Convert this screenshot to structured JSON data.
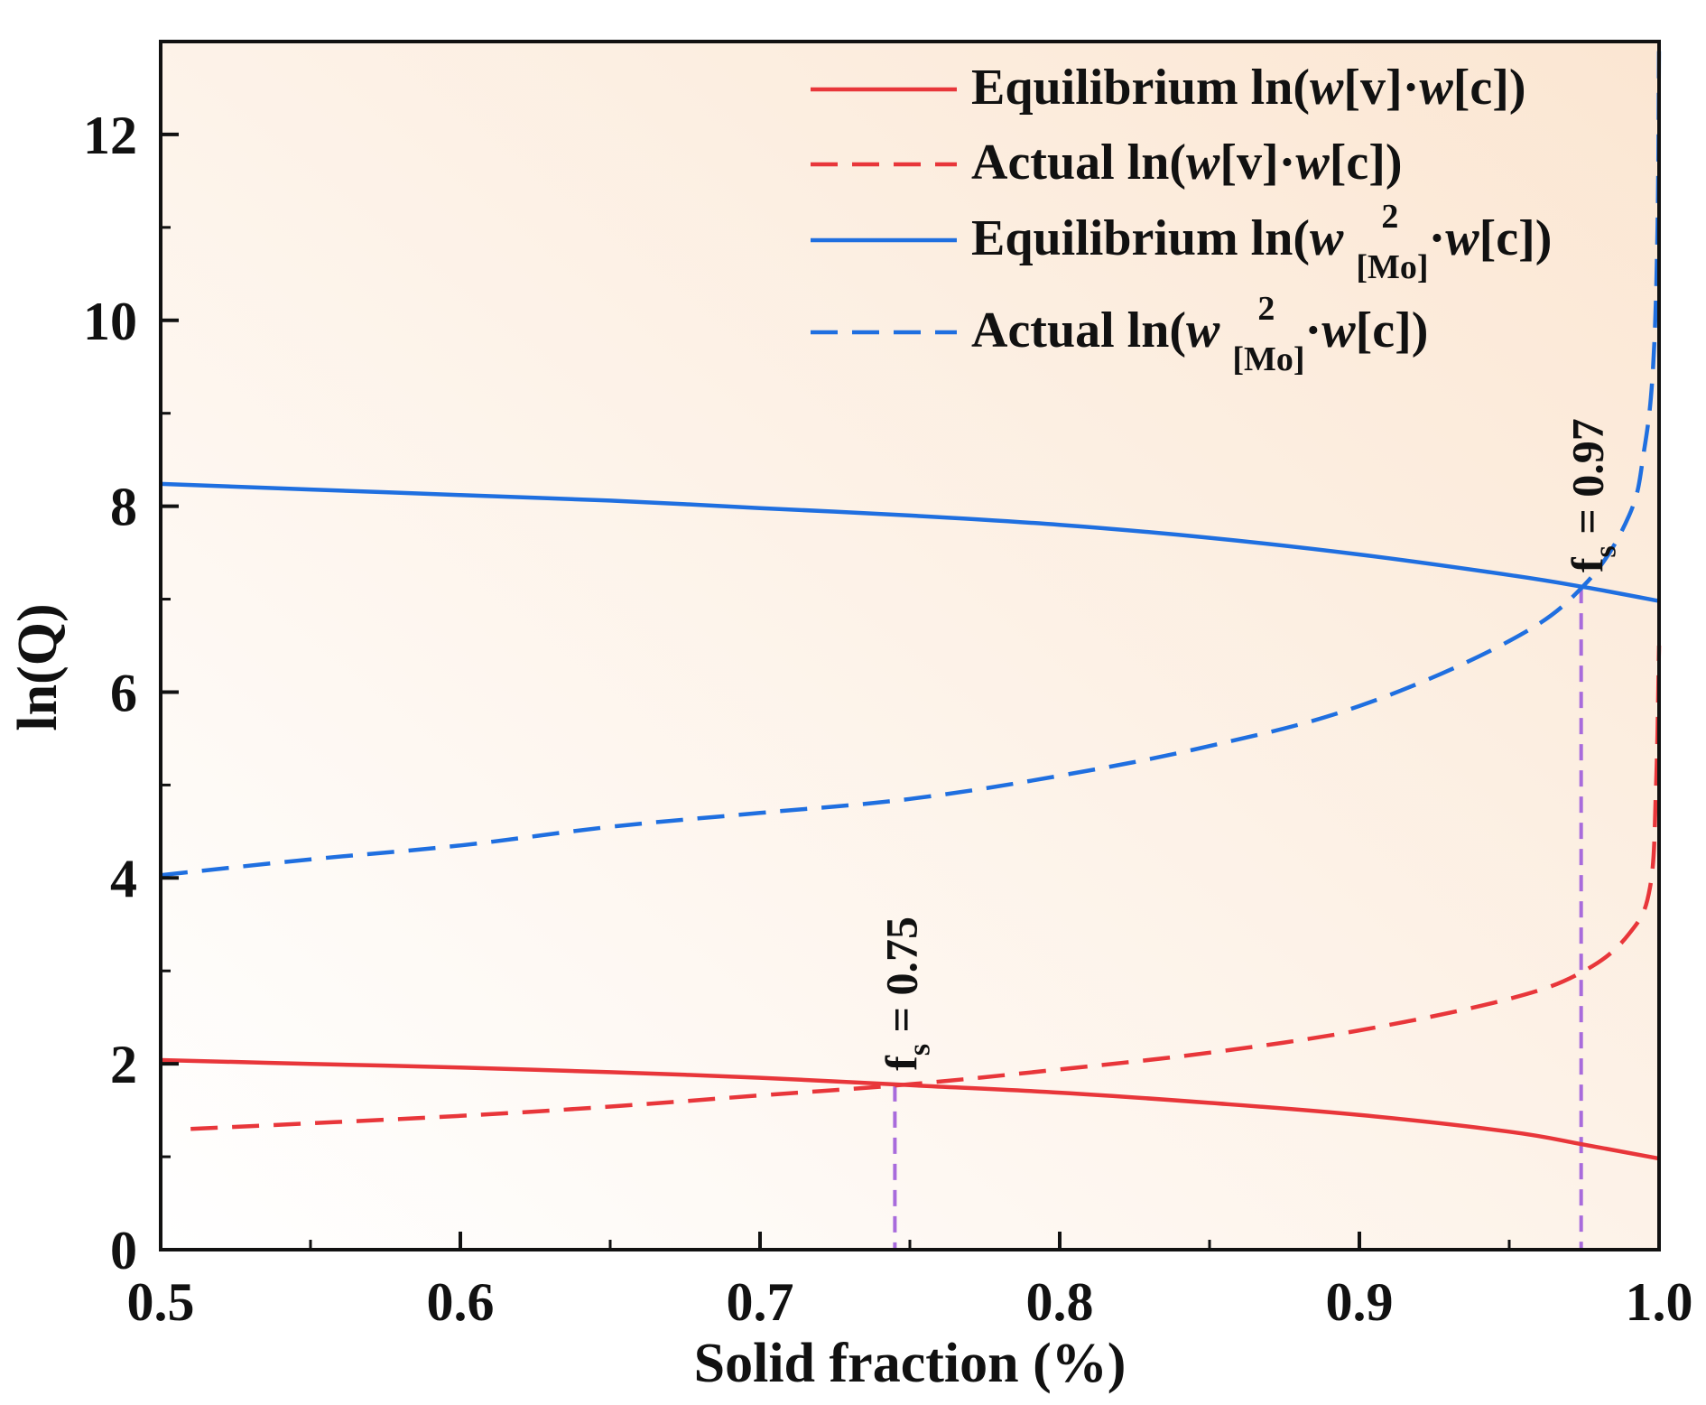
{
  "chart_data": {
    "type": "line",
    "xlabel": "Solid fraction (%)",
    "ylabel": "ln(Q)",
    "xlim": [
      0.5,
      1.0
    ],
    "ylim": [
      0,
      13
    ],
    "x_ticks": [
      "0.5",
      "0.6",
      "0.7",
      "0.8",
      "0.9",
      "1.0"
    ],
    "x_tick_values": [
      0.5,
      0.6,
      0.7,
      0.8,
      0.9,
      1.0
    ],
    "y_ticks": [
      "0",
      "2",
      "4",
      "6",
      "8",
      "10",
      "12"
    ],
    "y_tick_values": [
      0,
      2,
      4,
      6,
      8,
      10,
      12
    ],
    "background_gradient": [
      "#ffffff",
      "#fbe6d2"
    ],
    "legend_position": "top-right",
    "series": [
      {
        "name": "Equilibrium ln(w[v]·w[c])",
        "legend": {
          "pre": "Equilibrium ln(",
          "w1": "w",
          "mid": "[v]·",
          "w2": "w",
          "post": "[c])"
        },
        "color": "#e8363a",
        "style": "solid",
        "x": [
          0.5,
          0.55,
          0.6,
          0.65,
          0.7,
          0.75,
          0.8,
          0.85,
          0.9,
          0.95,
          0.975,
          1.0
        ],
        "y": [
          2.04,
          2.0,
          1.96,
          1.91,
          1.85,
          1.77,
          1.69,
          1.58,
          1.45,
          1.27,
          1.13,
          0.98
        ]
      },
      {
        "name": "Actual ln(w[v]·w[c])",
        "legend": {
          "pre": "Actual ln(",
          "w1": "w",
          "mid": "[v]·",
          "w2": "w",
          "post": "[c])"
        },
        "color": "#e8363a",
        "style": "dashed",
        "x": [
          0.51,
          0.55,
          0.6,
          0.65,
          0.7,
          0.75,
          0.8,
          0.85,
          0.9,
          0.95,
          0.975,
          0.99,
          0.997,
          0.999,
          1.0
        ],
        "y": [
          1.3,
          1.36,
          1.44,
          1.54,
          1.66,
          1.78,
          1.94,
          2.12,
          2.36,
          2.7,
          3.0,
          3.4,
          3.9,
          5.0,
          6.5
        ]
      },
      {
        "name": "Equilibrium ln(w²[Mo]·w[c])",
        "legend": {
          "pre": "Equilibrium ln(",
          "w1": "w",
          "sup": "2",
          "sub": "[Mo]",
          "mid": "·",
          "w2": "w",
          "post": "[c])"
        },
        "color": "#1f6fe0",
        "style": "solid",
        "x": [
          0.5,
          0.55,
          0.6,
          0.65,
          0.7,
          0.75,
          0.8,
          0.85,
          0.9,
          0.95,
          0.975,
          1.0
        ],
        "y": [
          8.24,
          8.18,
          8.12,
          8.06,
          7.98,
          7.9,
          7.8,
          7.66,
          7.48,
          7.26,
          7.13,
          6.98
        ]
      },
      {
        "name": "Actual ln(w²[Mo]·w[c])",
        "legend": {
          "pre": "Actual ln(",
          "w1": "w",
          "sup": "2",
          "sub": "[Mo]",
          "mid": "·",
          "w2": "w",
          "post": "[c])"
        },
        "color": "#1f6fe0",
        "style": "dashed",
        "x": [
          0.5,
          0.55,
          0.6,
          0.65,
          0.7,
          0.75,
          0.8,
          0.85,
          0.9,
          0.95,
          0.975,
          0.99,
          0.995,
          0.998,
          0.9995,
          1.0
        ],
        "y": [
          4.03,
          4.2,
          4.35,
          4.55,
          4.7,
          4.85,
          5.1,
          5.42,
          5.85,
          6.55,
          7.15,
          7.9,
          8.6,
          9.5,
          11.0,
          13.0
        ]
      }
    ],
    "annotations": [
      {
        "label": "f",
        "sub": "s",
        "text": " = 0.75",
        "x": 0.745,
        "y": 1.77,
        "color": "#a86bdc",
        "style": "dashed"
      },
      {
        "label": "f",
        "sub": "s",
        "text": " = 0.97",
        "x": 0.974,
        "y": 7.13,
        "color": "#a86bdc",
        "style": "dashed"
      }
    ]
  }
}
